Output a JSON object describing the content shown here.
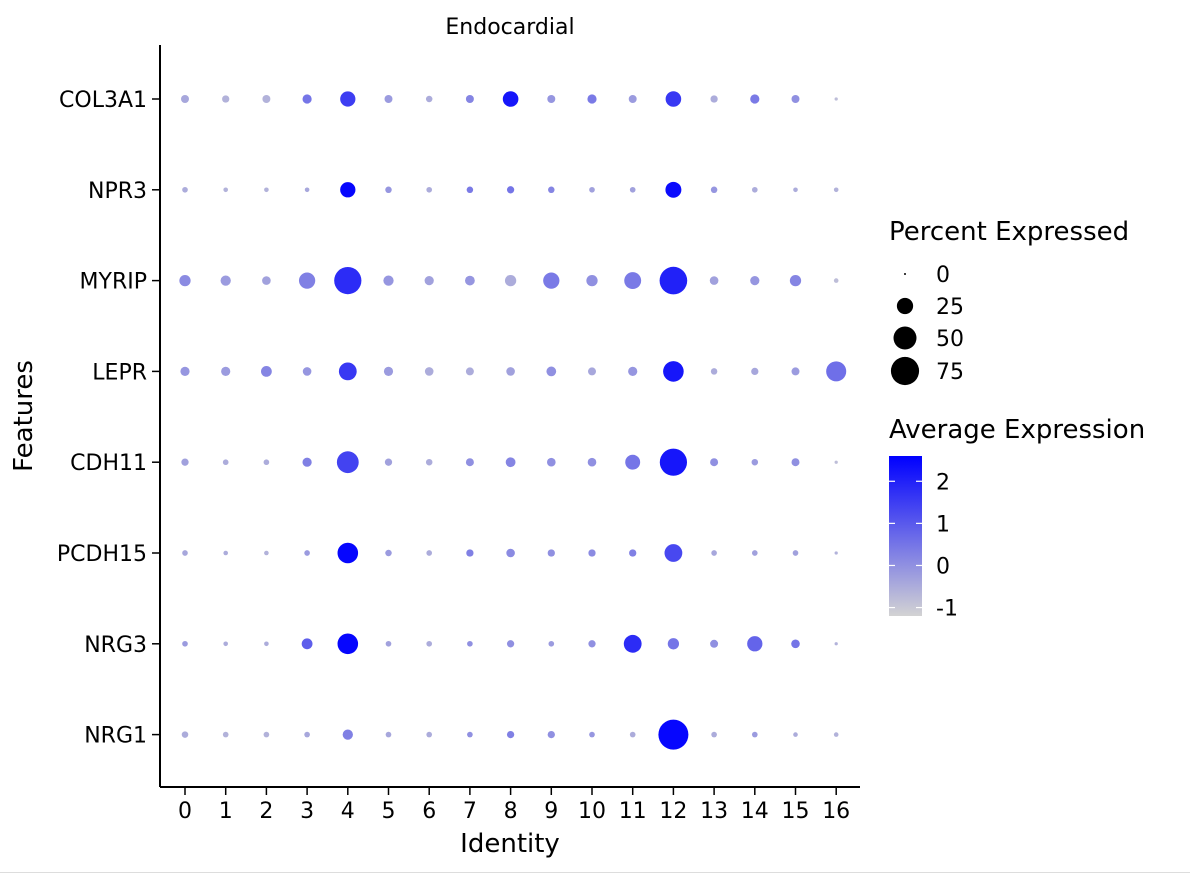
{
  "chart_data": {
    "type": "dotplot",
    "title": "Endocardial",
    "xlabel": "Identity",
    "ylabel": "Features",
    "categories": [
      "0",
      "1",
      "2",
      "3",
      "4",
      "5",
      "6",
      "7",
      "8",
      "9",
      "10",
      "11",
      "12",
      "13",
      "14",
      "15",
      "16"
    ],
    "features": [
      "COL3A1",
      "NPR3",
      "MYRIP",
      "LEPR",
      "CDH11",
      "PCDH15",
      "NRG3",
      "NRG1"
    ],
    "size_legend": {
      "title": "Percent Expressed",
      "breaks": [
        0,
        25,
        50,
        75
      ]
    },
    "color_legend": {
      "title": "Average Expression",
      "breaks": [
        2,
        1,
        0,
        -1
      ],
      "range": [
        -1.2,
        2.6
      ],
      "low_color": "#d3d3d3",
      "high_color": "#0000ff"
    },
    "pct": [
      [
        6,
        5,
        6,
        8,
        22,
        6,
        4,
        6,
        23,
        6,
        8,
        6,
        23,
        5,
        8,
        6,
        1
      ],
      [
        3,
        2,
        2,
        2,
        22,
        4,
        3,
        4,
        5,
        4,
        3,
        3,
        24,
        4,
        3,
        2,
        2
      ],
      [
        12,
        10,
        7,
        25,
        70,
        10,
        8,
        9,
        12,
        25,
        12,
        27,
        72,
        7,
        8,
        12,
        2
      ],
      [
        8,
        8,
        11,
        7,
        30,
        8,
        7,
        6,
        7,
        9,
        6,
        8,
        40,
        4,
        5,
        6,
        38
      ],
      [
        5,
        3,
        3,
        8,
        45,
        5,
        4,
        6,
        9,
        7,
        7,
        21,
        70,
        6,
        4,
        6,
        1
      ],
      [
        3,
        2,
        2,
        3,
        40,
        4,
        3,
        5,
        7,
        5,
        5,
        5,
        30,
        3,
        3,
        3,
        1
      ],
      [
        3,
        2,
        2,
        11,
        40,
        3,
        3,
        3,
        5,
        3,
        5,
        30,
        12,
        6,
        22,
        7,
        1
      ],
      [
        4,
        3,
        3,
        3,
        10,
        3,
        3,
        3,
        5,
        5,
        3,
        3,
        85,
        3,
        3,
        2,
        2
      ]
    ],
    "avg_exp": [
      [
        -0.4,
        -0.6,
        -0.6,
        0.5,
        1.5,
        -0.2,
        -0.5,
        0.2,
        2.2,
        -0.1,
        0.4,
        -0.2,
        1.6,
        -0.5,
        0.4,
        0.0,
        -0.8
      ],
      [
        -0.5,
        -0.6,
        -0.6,
        -0.4,
        2.5,
        -0.1,
        -0.5,
        0.4,
        0.5,
        0.2,
        -0.3,
        -0.3,
        2.4,
        -0.1,
        -0.5,
        -0.5,
        -0.6
      ],
      [
        0.1,
        -0.2,
        -0.3,
        0.3,
        1.8,
        -0.1,
        -0.3,
        -0.1,
        -0.5,
        0.4,
        0.0,
        0.4,
        2.0,
        -0.3,
        -0.1,
        0.2,
        -0.8
      ],
      [
        -0.1,
        -0.2,
        0.2,
        -0.1,
        1.6,
        -0.2,
        -0.5,
        -0.5,
        -0.3,
        0.0,
        -0.4,
        -0.1,
        2.2,
        -0.5,
        -0.4,
        -0.2,
        0.6
      ],
      [
        -0.3,
        -0.5,
        -0.5,
        0.3,
        1.4,
        -0.3,
        -0.5,
        0.0,
        0.2,
        0.0,
        0.0,
        0.5,
        2.2,
        0.0,
        -0.2,
        0.0,
        -0.8
      ],
      [
        -0.4,
        -0.5,
        -0.6,
        -0.2,
        2.5,
        -0.2,
        -0.5,
        0.3,
        0.1,
        0.0,
        0.1,
        0.3,
        1.3,
        -0.4,
        -0.3,
        -0.3,
        -0.6
      ],
      [
        -0.2,
        -0.5,
        -0.5,
        0.9,
        2.5,
        -0.3,
        -0.5,
        0.0,
        0.0,
        -0.2,
        0.0,
        1.8,
        0.5,
        0.0,
        0.8,
        0.5,
        -0.6
      ],
      [
        -0.5,
        -0.6,
        -0.6,
        -0.4,
        0.3,
        -0.4,
        -0.5,
        0.0,
        0.3,
        0.0,
        -0.1,
        -0.5,
        2.5,
        -0.5,
        -0.2,
        -0.5,
        -0.6
      ]
    ]
  }
}
